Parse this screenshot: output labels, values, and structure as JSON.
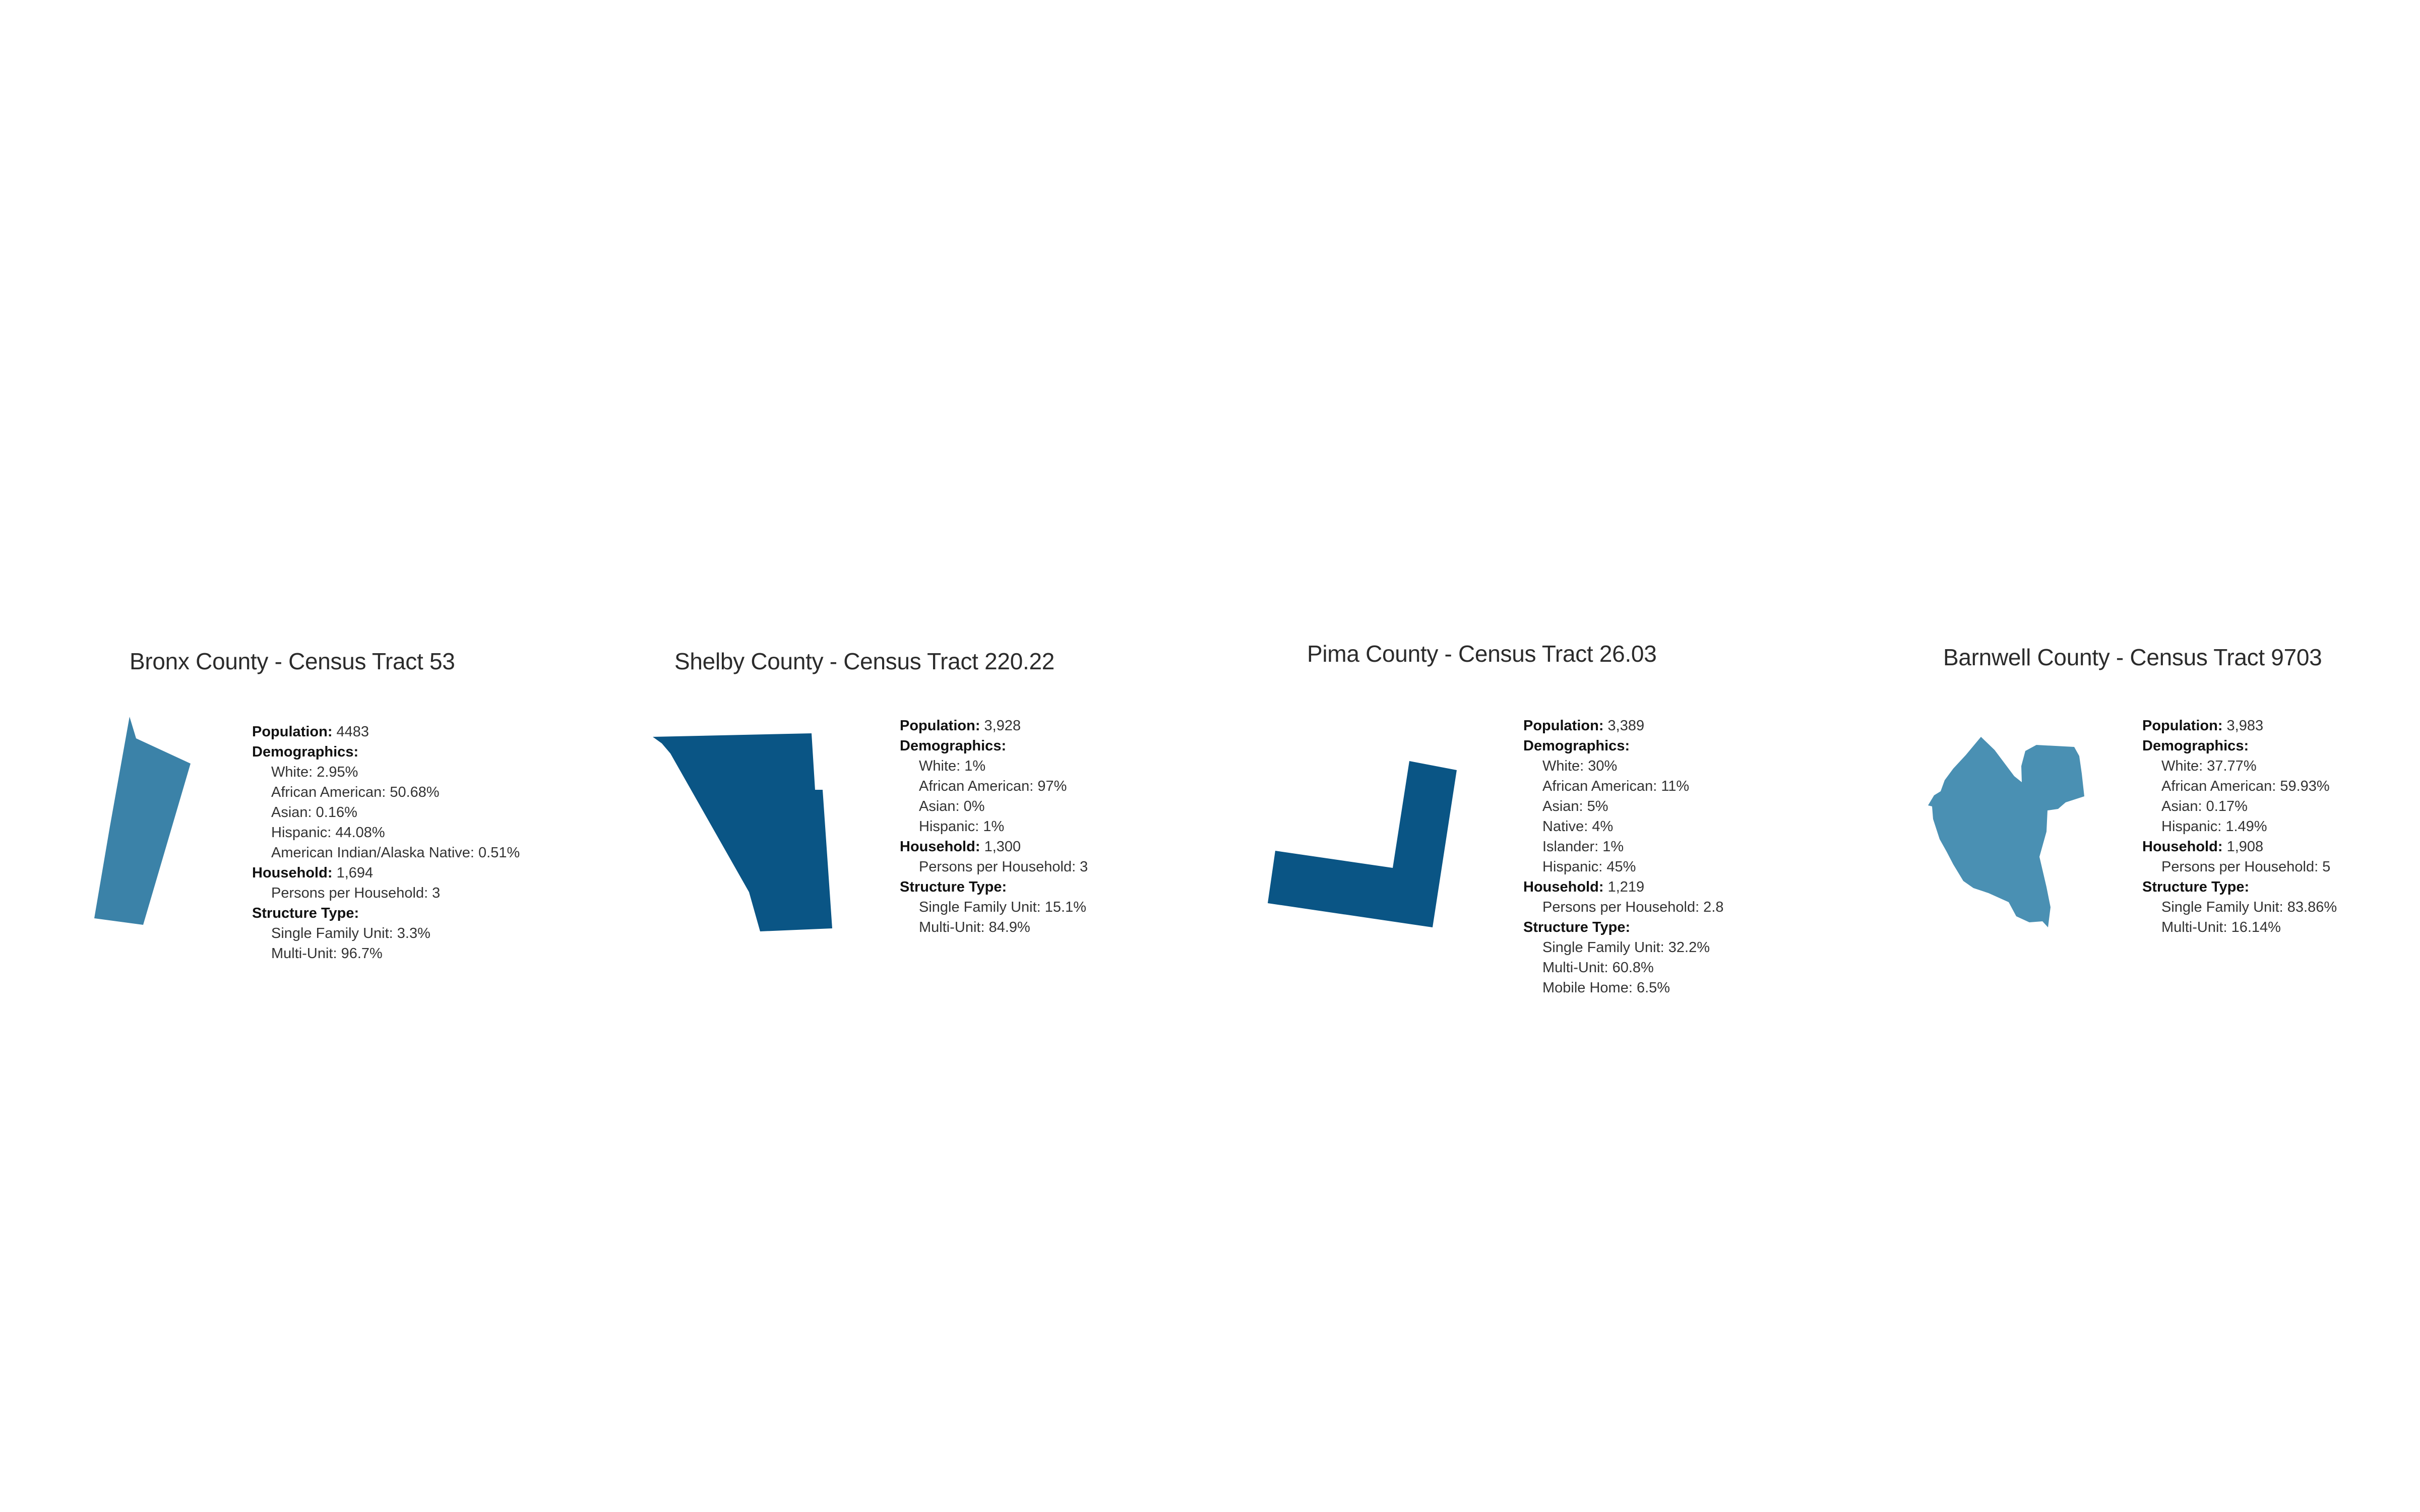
{
  "tracts": [
    {
      "title": "Bronx County - Census Tract 53",
      "color": "#3b82a8",
      "population_label": "Population:",
      "population": "4483",
      "demographics_label": "Demographics:",
      "demographics": [
        "White: 2.95%",
        "African American: 50.68%",
        "Asian: 0.16%",
        "Hispanic: 44.08%",
        "American Indian/Alaska Native: 0.51%"
      ],
      "household_label": "Household:",
      "household": "1,694",
      "household_details": [
        "Persons per Household: 3"
      ],
      "structure_label": "Structure Type:",
      "structure": [
        "Single Family Unit: 3.3%",
        "Multi-Unit: 96.7%"
      ]
    },
    {
      "title": "Shelby County - Census Tract 220.22",
      "color": "#0a5585",
      "population_label": "Population:",
      "population": "3,928",
      "demographics_label": "Demographics:",
      "demographics": [
        "White: 1%",
        "African American: 97%",
        "Asian: 0%",
        "Hispanic: 1%"
      ],
      "household_label": "Household:",
      "household": "1,300",
      "household_details": [
        "Persons per Household: 3"
      ],
      "structure_label": "Structure Type:",
      "structure": [
        "Single Family Unit: 15.1%",
        "Multi-Unit: 84.9%"
      ]
    },
    {
      "title": "Pima County - Census Tract 26.03",
      "color": "#0a5585",
      "population_label": "Population:",
      "population": "3,389",
      "demographics_label": "Demographics:",
      "demographics": [
        "White: 30%",
        "African American: 11%",
        "Asian: 5%",
        "Native: 4%",
        "Islander: 1%",
        "Hispanic: 45%"
      ],
      "household_label": "Household:",
      "household": "1,219",
      "household_details": [
        "Persons per Household: 2.8"
      ],
      "structure_label": "Structure Type:",
      "structure": [
        "Single Family Unit: 32.2%",
        "Multi-Unit: 60.8%",
        "Mobile Home: 6.5%"
      ]
    },
    {
      "title": "Barnwell County  - Census Tract 9703",
      "color": "#4a90b3",
      "population_label": "Population:",
      "population": "3,983",
      "demographics_label": "Demographics:",
      "demographics": [
        "White: 37.77%",
        "African American: 59.93%",
        "Asian: 0.17%",
        "Hispanic: 1.49%"
      ],
      "household_label": "Household:",
      "household": "1,908",
      "household_details": [
        "Persons per Household: 5"
      ],
      "structure_label": "Structure Type:",
      "structure": [
        "Single Family Unit: 83.86%",
        "Multi-Unit: 16.14%"
      ]
    }
  ]
}
